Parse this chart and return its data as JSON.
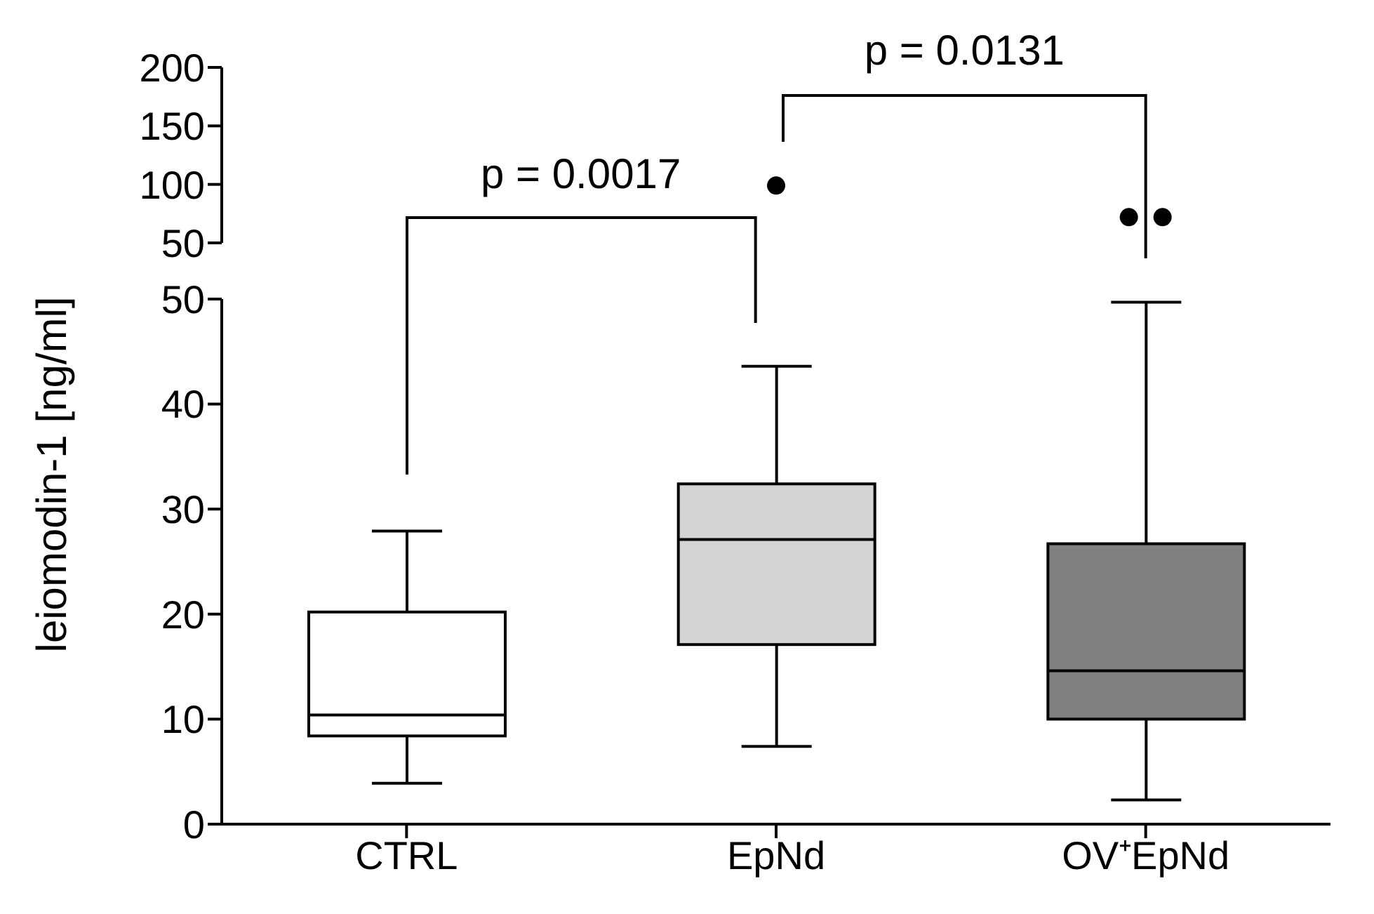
{
  "chart_data": [
    {
      "type": "scatter",
      "categories": [
        "CTRL",
        "EpNd",
        "OV⁺EpNd"
      ],
      "tick_labels": "y",
      "ylim": [
        50,
        200
      ],
      "yticks": [
        50,
        100,
        150,
        200
      ],
      "marker": "circle",
      "annotations": [
        "p = 0.0017",
        "p = 0.0131"
      ],
      "series": [
        {
          "x": [
            "EpNd",
            "OV⁺EpNd",
            "OV⁺EpNd"
          ],
          "values": [
            99,
            72,
            72
          ],
          "color": "#000000"
        }
      ]
    },
    {
      "type": "box",
      "categories": [
        "CTRL",
        "EpNd",
        "OV⁺EpNd"
      ],
      "ylabel": "leiomodin-1 [ng/ml]",
      "ylim": [
        0,
        50
      ],
      "yticks": [
        0,
        10,
        20,
        30,
        40,
        50
      ],
      "colors": [
        "#ffffff",
        "#d4d4d4",
        "#808080"
      ],
      "boxes": [
        {
          "low": 3.9,
          "q1": 8.4,
          "median": 10.4,
          "q3": 20.2,
          "high": 27.9
        },
        {
          "low": 7.4,
          "q1": 17.1,
          "median": 27.1,
          "q3": 32.4,
          "high": 43.6
        },
        {
          "low": 2.3,
          "q1": 10.0,
          "median": 14.6,
          "q3": 26.7,
          "high": 49.7
        }
      ]
    }
  ]
}
